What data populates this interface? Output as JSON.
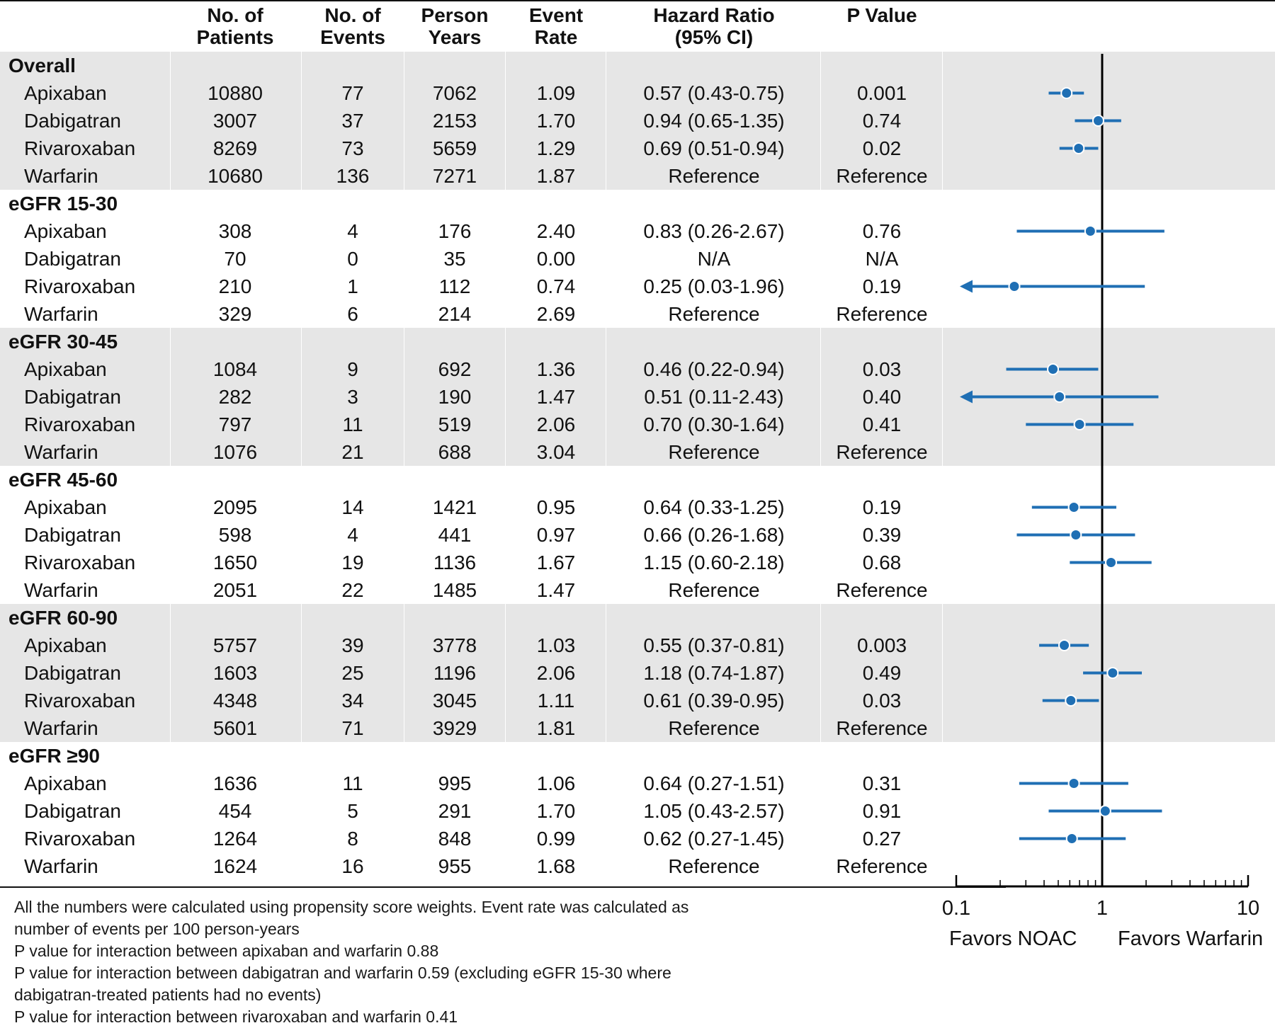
{
  "headers": {
    "patients": [
      "No. of",
      "Patients"
    ],
    "events": [
      "No. of",
      "Events"
    ],
    "person_years": [
      "Person",
      "Years"
    ],
    "event_rate": [
      "Event",
      "Rate"
    ],
    "hazard_ratio": [
      "Hazard Ratio",
      "(95% CI)"
    ],
    "p_value": [
      "",
      "P Value"
    ]
  },
  "groups": [
    {
      "label": "Overall",
      "shaded": true,
      "rows": [
        {
          "drug": "Apixaban",
          "patients": "10880",
          "events": "77",
          "person_years": "7062",
          "event_rate": "1.09",
          "hr_text": "0.57 (0.43-0.75)",
          "p": "0.001"
        },
        {
          "drug": "Dabigatran",
          "patients": "3007",
          "events": "37",
          "person_years": "2153",
          "event_rate": "1.70",
          "hr_text": "0.94 (0.65-1.35)",
          "p": "0.74"
        },
        {
          "drug": "Rivaroxaban",
          "patients": "8269",
          "events": "73",
          "person_years": "5659",
          "event_rate": "1.29",
          "hr_text": "0.69 (0.51-0.94)",
          "p": "0.02"
        },
        {
          "drug": "Warfarin",
          "patients": "10680",
          "events": "136",
          "person_years": "7271",
          "event_rate": "1.87",
          "hr_text": "Reference",
          "p": "Reference"
        }
      ]
    },
    {
      "label": "eGFR 15-30",
      "shaded": false,
      "rows": [
        {
          "drug": "Apixaban",
          "patients": "308",
          "events": "4",
          "person_years": "176",
          "event_rate": "2.40",
          "hr_text": "0.83 (0.26-2.67)",
          "p": "0.76"
        },
        {
          "drug": "Dabigatran",
          "patients": "70",
          "events": "0",
          "person_years": "35",
          "event_rate": "0.00",
          "hr_text": "N/A",
          "p": "N/A"
        },
        {
          "drug": "Rivaroxaban",
          "patients": "210",
          "events": "1",
          "person_years": "112",
          "event_rate": "0.74",
          "hr_text": "0.25 (0.03-1.96)",
          "p": "0.19"
        },
        {
          "drug": "Warfarin",
          "patients": "329",
          "events": "6",
          "person_years": "214",
          "event_rate": "2.69",
          "hr_text": "Reference",
          "p": "Reference"
        }
      ]
    },
    {
      "label": "eGFR 30-45",
      "shaded": true,
      "rows": [
        {
          "drug": "Apixaban",
          "patients": "1084",
          "events": "9",
          "person_years": "692",
          "event_rate": "1.36",
          "hr_text": "0.46 (0.22-0.94)",
          "p": "0.03"
        },
        {
          "drug": "Dabigatran",
          "patients": "282",
          "events": "3",
          "person_years": "190",
          "event_rate": "1.47",
          "hr_text": "0.51 (0.11-2.43)",
          "p": "0.40"
        },
        {
          "drug": "Rivaroxaban",
          "patients": "797",
          "events": "11",
          "person_years": "519",
          "event_rate": "2.06",
          "hr_text": "0.70 (0.30-1.64)",
          "p": "0.41"
        },
        {
          "drug": "Warfarin",
          "patients": "1076",
          "events": "21",
          "person_years": "688",
          "event_rate": "3.04",
          "hr_text": "Reference",
          "p": "Reference"
        }
      ]
    },
    {
      "label": "eGFR 45-60",
      "shaded": false,
      "rows": [
        {
          "drug": "Apixaban",
          "patients": "2095",
          "events": "14",
          "person_years": "1421",
          "event_rate": "0.95",
          "hr_text": "0.64 (0.33-1.25)",
          "p": "0.19"
        },
        {
          "drug": "Dabigatran",
          "patients": "598",
          "events": "4",
          "person_years": "441",
          "event_rate": "0.97",
          "hr_text": "0.66 (0.26-1.68)",
          "p": "0.39"
        },
        {
          "drug": "Rivaroxaban",
          "patients": "1650",
          "events": "19",
          "person_years": "1136",
          "event_rate": "1.67",
          "hr_text": "1.15 (0.60-2.18)",
          "p": "0.68"
        },
        {
          "drug": "Warfarin",
          "patients": "2051",
          "events": "22",
          "person_years": "1485",
          "event_rate": "1.47",
          "hr_text": "Reference",
          "p": "Reference"
        }
      ]
    },
    {
      "label": "eGFR 60-90",
      "shaded": true,
      "rows": [
        {
          "drug": "Apixaban",
          "patients": "5757",
          "events": "39",
          "person_years": "3778",
          "event_rate": "1.03",
          "hr_text": "0.55 (0.37-0.81)",
          "p": "0.003"
        },
        {
          "drug": "Dabigatran",
          "patients": "1603",
          "events": "25",
          "person_years": "1196",
          "event_rate": "2.06",
          "hr_text": "1.18 (0.74-1.87)",
          "p": "0.49"
        },
        {
          "drug": "Rivaroxaban",
          "patients": "4348",
          "events": "34",
          "person_years": "3045",
          "event_rate": "1.11",
          "hr_text": "0.61 (0.39-0.95)",
          "p": "0.03"
        },
        {
          "drug": "Warfarin",
          "patients": "5601",
          "events": "71",
          "person_years": "3929",
          "event_rate": "1.81",
          "hr_text": "Reference",
          "p": "Reference"
        }
      ]
    },
    {
      "label": "eGFR ≥90",
      "shaded": false,
      "rows": [
        {
          "drug": "Apixaban",
          "patients": "1636",
          "events": "11",
          "person_years": "995",
          "event_rate": "1.06",
          "hr_text": "0.64 (0.27-1.51)",
          "p": "0.31"
        },
        {
          "drug": "Dabigatran",
          "patients": "454",
          "events": "5",
          "person_years": "291",
          "event_rate": "1.70",
          "hr_text": "1.05 (0.43-2.57)",
          "p": "0.91"
        },
        {
          "drug": "Rivaroxaban",
          "patients": "1264",
          "events": "8",
          "person_years": "848",
          "event_rate": "0.99",
          "hr_text": "0.62 (0.27-1.45)",
          "p": "0.27"
        },
        {
          "drug": "Warfarin",
          "patients": "1624",
          "events": "16",
          "person_years": "955",
          "event_rate": "1.68",
          "hr_text": "Reference",
          "p": "Reference"
        }
      ]
    }
  ],
  "chart_data": {
    "type": "scatter",
    "subtype": "forest",
    "scale": "log",
    "xlim": [
      0.1,
      10
    ],
    "xticks": [
      0.1,
      1,
      10
    ],
    "xtick_labels": [
      "0.1",
      "1",
      "10"
    ],
    "reference_line": 1,
    "favors_left": "Favors NOAC",
    "favors_right": "Favors Warfarin",
    "color": "#1f6fb4",
    "estimates": [
      {
        "group": "Overall",
        "drug": "Apixaban",
        "hr": 0.57,
        "lo": 0.43,
        "hi": 0.75
      },
      {
        "group": "Overall",
        "drug": "Dabigatran",
        "hr": 0.94,
        "lo": 0.65,
        "hi": 1.35
      },
      {
        "group": "Overall",
        "drug": "Rivaroxaban",
        "hr": 0.69,
        "lo": 0.51,
        "hi": 0.94
      },
      {
        "group": "Overall",
        "drug": "Warfarin",
        "hr": null
      },
      {
        "group": "eGFR 15-30",
        "drug": "Apixaban",
        "hr": 0.83,
        "lo": 0.26,
        "hi": 2.67
      },
      {
        "group": "eGFR 15-30",
        "drug": "Dabigatran",
        "hr": null
      },
      {
        "group": "eGFR 15-30",
        "drug": "Rivaroxaban",
        "hr": 0.25,
        "lo": 0.03,
        "hi": 1.96
      },
      {
        "group": "eGFR 15-30",
        "drug": "Warfarin",
        "hr": null
      },
      {
        "group": "eGFR 30-45",
        "drug": "Apixaban",
        "hr": 0.46,
        "lo": 0.22,
        "hi": 0.94
      },
      {
        "group": "eGFR 30-45",
        "drug": "Dabigatran",
        "hr": 0.51,
        "lo": 0.11,
        "hi": 2.43
      },
      {
        "group": "eGFR 30-45",
        "drug": "Rivaroxaban",
        "hr": 0.7,
        "lo": 0.3,
        "hi": 1.64
      },
      {
        "group": "eGFR 30-45",
        "drug": "Warfarin",
        "hr": null
      },
      {
        "group": "eGFR 45-60",
        "drug": "Apixaban",
        "hr": 0.64,
        "lo": 0.33,
        "hi": 1.25
      },
      {
        "group": "eGFR 45-60",
        "drug": "Dabigatran",
        "hr": 0.66,
        "lo": 0.26,
        "hi": 1.68
      },
      {
        "group": "eGFR 45-60",
        "drug": "Rivaroxaban",
        "hr": 1.15,
        "lo": 0.6,
        "hi": 2.18
      },
      {
        "group": "eGFR 45-60",
        "drug": "Warfarin",
        "hr": null
      },
      {
        "group": "eGFR 60-90",
        "drug": "Apixaban",
        "hr": 0.55,
        "lo": 0.37,
        "hi": 0.81
      },
      {
        "group": "eGFR 60-90",
        "drug": "Dabigatran",
        "hr": 1.18,
        "lo": 0.74,
        "hi": 1.87
      },
      {
        "group": "eGFR 60-90",
        "drug": "Rivaroxaban",
        "hr": 0.61,
        "lo": 0.39,
        "hi": 0.95
      },
      {
        "group": "eGFR 60-90",
        "drug": "Warfarin",
        "hr": null
      },
      {
        "group": "eGFR ≥90",
        "drug": "Apixaban",
        "hr": 0.64,
        "lo": 0.27,
        "hi": 1.51
      },
      {
        "group": "eGFR ≥90",
        "drug": "Dabigatran",
        "hr": 1.05,
        "lo": 0.43,
        "hi": 2.57
      },
      {
        "group": "eGFR ≥90",
        "drug": "Rivaroxaban",
        "hr": 0.62,
        "lo": 0.27,
        "hi": 1.45
      },
      {
        "group": "eGFR ≥90",
        "drug": "Warfarin",
        "hr": null
      }
    ]
  },
  "footnotes": [
    "All the numbers were calculated using propensity score weights. Event rate was calculated as",
    "number of events per 100 person-years",
    "P value for interaction between apixaban and warfarin 0.88",
    "P value for interaction between dabigatran and warfarin 0.59 (excluding eGFR 15-30 where",
    "dabigatran-treated patients had no events)",
    "P value for interaction between rivaroxaban and warfarin 0.41"
  ]
}
